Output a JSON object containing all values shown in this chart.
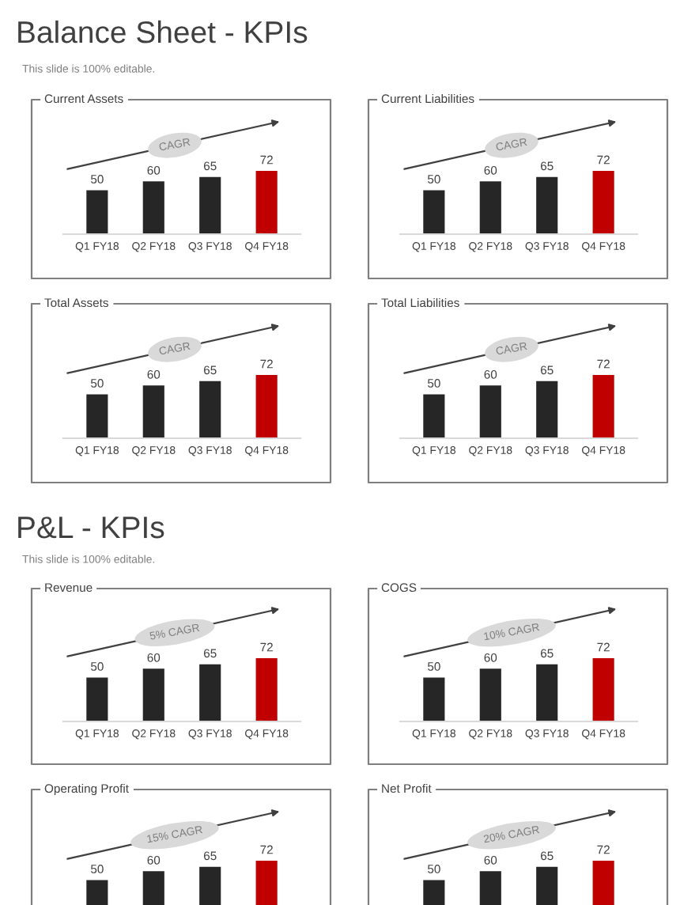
{
  "chart_data": [
    {
      "type": "bar",
      "title": "Current Assets",
      "categories": [
        "Q1 FY18",
        "Q2 FY18",
        "Q3 FY18",
        "Q4 FY18"
      ],
      "values": [
        50,
        60,
        65,
        72
      ],
      "colors": [
        "#262626",
        "#262626",
        "#262626",
        "#c00000"
      ],
      "data_labels": true,
      "annotations": [
        "Balance Sheet - KPIs",
        "This slide is 100% editable.",
        "CAGR"
      ]
    },
    {
      "type": "bar",
      "title": "Current Liabilities",
      "categories": [
        "Q1 FY18",
        "Q2 FY18",
        "Q3 FY18",
        "Q4 FY18"
      ],
      "values": [
        50,
        60,
        65,
        72
      ],
      "colors": [
        "#262626",
        "#262626",
        "#262626",
        "#c00000"
      ],
      "data_labels": true,
      "annotations": [
        "CAGR"
      ]
    },
    {
      "type": "bar",
      "title": "Total Assets",
      "categories": [
        "Q1 FY18",
        "Q2 FY18",
        "Q3 FY18",
        "Q4 FY18"
      ],
      "values": [
        50,
        60,
        65,
        72
      ],
      "colors": [
        "#262626",
        "#262626",
        "#262626",
        "#c00000"
      ],
      "data_labels": true,
      "annotations": [
        "CAGR"
      ]
    },
    {
      "type": "bar",
      "title": "Total Liabilities",
      "categories": [
        "Q1 FY18",
        "Q2 FY18",
        "Q3 FY18",
        "Q4 FY18"
      ],
      "values": [
        50,
        60,
        65,
        72
      ],
      "colors": [
        "#262626",
        "#262626",
        "#262626",
        "#c00000"
      ],
      "data_labels": true,
      "annotations": [
        "CAGR"
      ]
    },
    {
      "type": "bar",
      "title": "Revenue",
      "categories": [
        "Q1 FY18",
        "Q2 FY18",
        "Q3 FY18",
        "Q4 FY18"
      ],
      "values": [
        50,
        60,
        65,
        72
      ],
      "colors": [
        "#262626",
        "#262626",
        "#262626",
        "#c00000"
      ],
      "data_labels": true,
      "annotations": [
        "P&L - KPIs",
        "This slide is 100% editable.",
        "5% CAGR"
      ]
    },
    {
      "type": "bar",
      "title": "COGS",
      "categories": [
        "Q1 FY18",
        "Q2 FY18",
        "Q3 FY18",
        "Q4 FY18"
      ],
      "values": [
        50,
        60,
        65,
        72
      ],
      "colors": [
        "#262626",
        "#262626",
        "#262626",
        "#c00000"
      ],
      "data_labels": true,
      "annotations": [
        "10% CAGR"
      ]
    },
    {
      "type": "bar",
      "title": "Operating Profit",
      "categories": [
        null,
        null,
        null,
        null
      ],
      "values": [
        50,
        60,
        65,
        72
      ],
      "colors": [
        "#262626",
        "#262626",
        "#262626",
        "#c00000"
      ],
      "data_labels": true,
      "annotations": [
        "15% CAGR"
      ]
    },
    {
      "type": "bar",
      "title": "Net Profit",
      "categories": [
        null,
        null,
        null,
        null
      ],
      "values": [
        50,
        60,
        65,
        72
      ],
      "colors": [
        "#262626",
        "#262626",
        "#262626",
        "#c00000"
      ],
      "data_labels": true,
      "annotations": [
        "20% CAGR"
      ]
    }
  ]
}
